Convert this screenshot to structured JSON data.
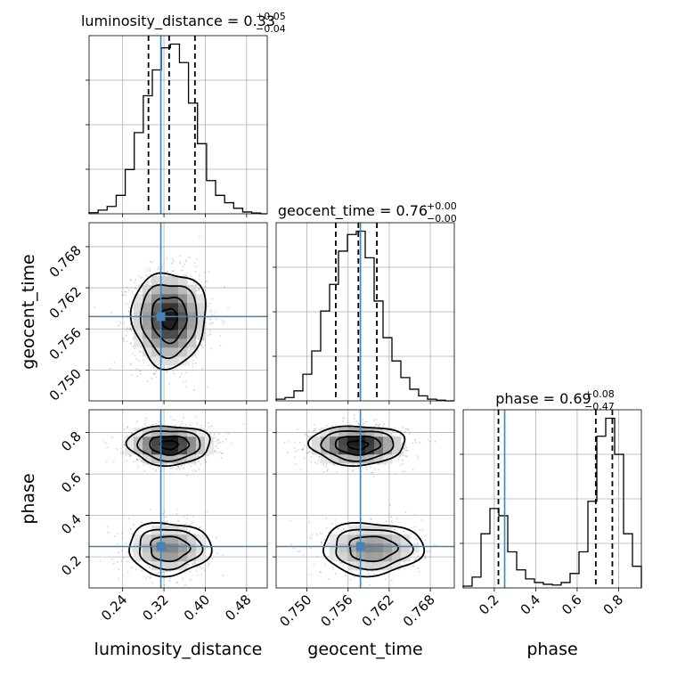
{
  "chart_data": {
    "type": "corner",
    "parameters": [
      "luminosity_distance",
      "geocent_time",
      "phase"
    ],
    "axis_labels": [
      "luminosity_distance",
      "geocent_time",
      "phase"
    ],
    "ranges": {
      "luminosity_distance": [
        0.175,
        0.52
      ],
      "geocent_time": [
        0.7455,
        0.7715
      ],
      "phase": [
        0.05,
        0.91
      ]
    },
    "ticks": {
      "luminosity_distance": {
        "values": [
          0.24,
          0.32,
          0.4,
          0.48
        ],
        "labels": [
          "0.24",
          "0.32",
          "0.40",
          "0.48"
        ]
      },
      "geocent_time": {
        "values": [
          0.75,
          0.756,
          0.762,
          0.768
        ],
        "labels": [
          "0.750",
          "0.756",
          "0.762",
          "0.768"
        ]
      },
      "phase_x": {
        "values": [
          0.2,
          0.4,
          0.6,
          0.8
        ],
        "labels": [
          "0.2",
          "0.4",
          "0.6",
          "0.8"
        ]
      },
      "phase_y": {
        "values": [
          0.2,
          0.4,
          0.6,
          0.8
        ],
        "labels": [
          "0.2",
          "0.4",
          "0.6",
          "0.8"
        ]
      }
    },
    "titles": {
      "luminosity_distance": {
        "text": "luminosity_distance = 0.33",
        "plus": "+0.05",
        "minus": "−0.04"
      },
      "geocent_time": {
        "text": "geocent_time = 0.76",
        "plus": "+0.00",
        "minus": "−0.00"
      },
      "phase": {
        "text": "phase = 0.69",
        "plus": "+0.08",
        "minus": "−0.47"
      }
    },
    "truths": {
      "luminosity_distance": 0.314,
      "geocent_time": 0.7578,
      "phase": 0.25
    },
    "quantiles": {
      "luminosity_distance": [
        0.29,
        0.33,
        0.38
      ],
      "geocent_time": [
        0.7542,
        0.7575,
        0.7602
      ],
      "phase": [
        0.22,
        0.69,
        0.77
      ]
    },
    "histograms": {
      "luminosity_distance": {
        "edges": [
          0.175,
          0.1925,
          0.21,
          0.2275,
          0.245,
          0.2625,
          0.28,
          0.2975,
          0.315,
          0.3325,
          0.35,
          0.3675,
          0.385,
          0.4025,
          0.42,
          0.4375,
          0.455,
          0.4725,
          0.49,
          0.5075,
          0.52
        ],
        "counts": [
          0.3,
          1.0,
          2.0,
          5.0,
          12.0,
          22.0,
          32.0,
          39.0,
          45.0,
          46.0,
          41.0,
          30.0,
          19.0,
          9.0,
          5.0,
          3.0,
          1.5,
          0.5,
          0.2,
          0.0
        ]
      },
      "geocent_time": {
        "edges": [
          0.7455,
          0.7468,
          0.7481,
          0.7494,
          0.7507,
          0.752,
          0.7533,
          0.7546,
          0.7559,
          0.7572,
          0.7585,
          0.7598,
          0.7611,
          0.7624,
          0.7637,
          0.765,
          0.7663,
          0.7676,
          0.7689,
          0.7702,
          0.7715
        ],
        "counts": [
          0.5,
          1.0,
          3.0,
          8.0,
          15.0,
          27.0,
          35.0,
          45.0,
          50.0,
          51.0,
          43.0,
          30.0,
          19.0,
          12.0,
          7.0,
          3.5,
          1.5,
          0.5,
          0.2,
          0.0
        ]
      },
      "phase": {
        "edges": [
          0.05,
          0.093,
          0.136,
          0.179,
          0.222,
          0.265,
          0.308,
          0.351,
          0.394,
          0.437,
          0.48,
          0.523,
          0.566,
          0.609,
          0.652,
          0.695,
          0.738,
          0.781,
          0.824,
          0.867,
          0.91
        ],
        "counts": [
          0.5,
          3.0,
          15.0,
          22.0,
          20.0,
          10.0,
          5.0,
          2.5,
          1.5,
          1.0,
          0.8,
          1.5,
          4.0,
          10.0,
          24.0,
          42.0,
          47.0,
          37.0,
          15.0,
          6.0
        ]
      }
    },
    "pairs": [
      {
        "x": "luminosity_distance",
        "y": "geocent_time",
        "modes": [
          {
            "cx": 0.33,
            "cy": 0.7575,
            "sx": 0.034,
            "sy": 0.0033,
            "weight": 1.0
          }
        ],
        "points": 1700
      },
      {
        "x": "luminosity_distance",
        "y": "phase",
        "modes": [
          {
            "cx": 0.33,
            "cy": 0.74,
            "sx": 0.038,
            "sy": 0.045,
            "weight": 0.66
          },
          {
            "cx": 0.33,
            "cy": 0.24,
            "sx": 0.038,
            "sy": 0.06,
            "weight": 0.34
          }
        ],
        "points": 1700
      },
      {
        "x": "geocent_time",
        "y": "phase",
        "modes": [
          {
            "cx": 0.7574,
            "cy": 0.74,
            "sx": 0.0033,
            "sy": 0.045,
            "weight": 0.66
          },
          {
            "cx": 0.7595,
            "cy": 0.24,
            "sx": 0.0035,
            "sy": 0.06,
            "weight": 0.34
          }
        ],
        "points": 1700
      }
    ],
    "colors": {
      "truth": "#4682b4",
      "line": "#000000",
      "grid": "#b0b0b0",
      "scatter": "#808080"
    },
    "grid": true
  }
}
